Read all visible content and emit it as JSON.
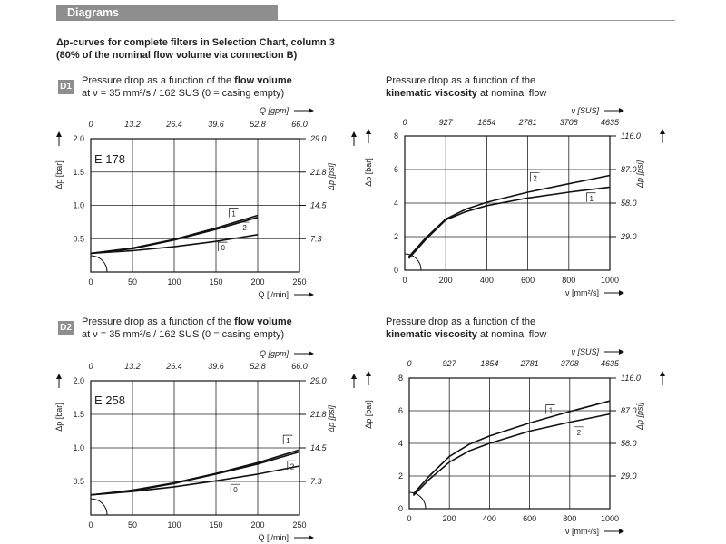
{
  "header": {
    "title": "Diagrams"
  },
  "subtitle": {
    "line1": "Δp-curves for complete filters in Selection Chart, column 3",
    "line2": "(80% of the nominal flow volume via connection B)"
  },
  "colors": {
    "header_bg": "#8e8e8e",
    "line": "#111111",
    "grid": "#222222"
  },
  "panels": {
    "d1": {
      "badge": "D1",
      "t1": "Pressure drop as a function of the ",
      "t1b": "flow volume",
      "t2": "at ν = 35 mm²/s / 162 SUS (0 = casing empty)"
    },
    "d2": {
      "badge": "D2",
      "t1": "Pressure drop as a function of the ",
      "t1b": "flow volume",
      "t2": "at ν = 35 mm²/s / 162 SUS (0 = casing empty)"
    },
    "v1": {
      "t1": "Pressure drop as a function of the",
      "t2b": "kinematic viscosity",
      "t2": " at nominal flow"
    },
    "v2": {
      "t1": "Pressure drop as a function of the",
      "t2b": "kinematic viscosity",
      "t2": " at nominal flow"
    }
  },
  "chart_data": [
    {
      "id": "d1",
      "type": "line",
      "title": "E 178",
      "xlabel": "Q [l/min]",
      "x2label": "Q [gpm]",
      "ylabel": "Δp [bar]",
      "y2label": "Δp [psi]",
      "xlim": [
        0,
        250
      ],
      "ylim": [
        0,
        2.0
      ],
      "xticks": [
        "0",
        "50",
        "100",
        "150",
        "200",
        "250"
      ],
      "xtick_vals": [
        0,
        50,
        100,
        150,
        200,
        250
      ],
      "x2ticks": [
        "0",
        "13.2",
        "26.4",
        "39.6",
        "52.8",
        "66.0"
      ],
      "yticks": [
        "0.5",
        "1.0",
        "1.5",
        "2.0"
      ],
      "ytick_vals": [
        0.5,
        1.0,
        1.5,
        2.0
      ],
      "y2ticks": [
        "7.3",
        "14.5",
        "21.8",
        "29.0"
      ],
      "series": [
        {
          "name": "0",
          "x": [
            0,
            50,
            100,
            150,
            200
          ],
          "y": [
            0.28,
            0.32,
            0.38,
            0.46,
            0.56
          ]
        },
        {
          "name": "1",
          "x": [
            0,
            50,
            100,
            150,
            200
          ],
          "y": [
            0.28,
            0.36,
            0.49,
            0.66,
            0.85
          ]
        },
        {
          "name": "2",
          "x": [
            0,
            50,
            100,
            150,
            200
          ],
          "y": [
            0.28,
            0.35,
            0.48,
            0.64,
            0.82
          ]
        }
      ],
      "annotations": [
        {
          "text": "1",
          "x": 170,
          "y": 0.93
        },
        {
          "text": "2",
          "x": 183,
          "y": 0.72
        },
        {
          "text": "0",
          "x": 157,
          "y": 0.42
        }
      ]
    },
    {
      "id": "v1",
      "type": "line",
      "title": "",
      "xlabel": "ν  [mm²/s]",
      "x2label": "ν  [SUS]",
      "ylabel": "Δp [bar]",
      "y2label": "Δp [psi]",
      "xlim": [
        0,
        1000
      ],
      "ylim": [
        0,
        8
      ],
      "xticks": [
        "0",
        "200",
        "400",
        "600",
        "800",
        "1000"
      ],
      "xtick_vals": [
        0,
        200,
        400,
        600,
        800,
        1000
      ],
      "x2ticks": [
        "0",
        "927",
        "1854",
        "2781",
        "3708",
        "4635"
      ],
      "yticks": [
        "0",
        "2",
        "4",
        "6",
        "8"
      ],
      "ytick_vals": [
        0,
        2,
        4,
        6,
        8
      ],
      "y2ticks": [
        "29.0",
        "58.0",
        "87.0",
        "116.0"
      ],
      "y2tick_vals": [
        2,
        4,
        6,
        8
      ],
      "series": [
        {
          "name": "1",
          "x": [
            20,
            100,
            200,
            300,
            400,
            600,
            800,
            1000
          ],
          "y": [
            0.7,
            1.8,
            3.0,
            3.5,
            3.85,
            4.3,
            4.65,
            4.95
          ]
        },
        {
          "name": "2",
          "x": [
            20,
            100,
            200,
            300,
            400,
            600,
            800,
            1000
          ],
          "y": [
            0.8,
            1.9,
            3.05,
            3.65,
            4.05,
            4.65,
            5.15,
            5.65
          ]
        }
      ],
      "annotations": [
        {
          "text": "2",
          "x": 630,
          "y": 5.7
        },
        {
          "text": "1",
          "x": 905,
          "y": 4.5
        }
      ]
    },
    {
      "id": "d2",
      "type": "line",
      "title": "E 258",
      "xlabel": "Q [l/min]",
      "x2label": "Q [gpm]",
      "ylabel": "Δp [bar]",
      "y2label": "Δp [psi]",
      "xlim": [
        0,
        250
      ],
      "ylim": [
        0,
        2.0
      ],
      "xticks": [
        "0",
        "50",
        "100",
        "150",
        "200",
        "250"
      ],
      "xtick_vals": [
        0,
        50,
        100,
        150,
        200,
        250
      ],
      "x2ticks": [
        "0",
        "13.2",
        "26.4",
        "39.6",
        "52.8",
        "66.0"
      ],
      "yticks": [
        "0.5",
        "1.0",
        "1.5",
        "2.0"
      ],
      "ytick_vals": [
        0.5,
        1.0,
        1.5,
        2.0
      ],
      "y2ticks": [
        "7.3",
        "14.5",
        "21.8",
        "29.0"
      ],
      "series": [
        {
          "name": "0",
          "x": [
            0,
            50,
            100,
            150,
            200,
            250
          ],
          "y": [
            0.3,
            0.35,
            0.42,
            0.51,
            0.61,
            0.73
          ]
        },
        {
          "name": "1",
          "x": [
            0,
            50,
            100,
            150,
            200,
            250
          ],
          "y": [
            0.3,
            0.37,
            0.48,
            0.62,
            0.78,
            0.97
          ]
        },
        {
          "name": "2",
          "x": [
            0,
            50,
            100,
            150,
            200,
            250
          ],
          "y": [
            0.3,
            0.36,
            0.47,
            0.61,
            0.76,
            0.94
          ]
        }
      ],
      "annotations": [
        {
          "text": "1",
          "x": 235,
          "y": 1.16
        },
        {
          "text": "2",
          "x": 240,
          "y": 0.78
        },
        {
          "text": "0",
          "x": 172,
          "y": 0.43
        }
      ]
    },
    {
      "id": "v2",
      "type": "line",
      "title": "",
      "xlabel": "ν  [mm²/s]",
      "x2label": "ν  [SUS]",
      "ylabel": "Δp [bar]",
      "y2label": "Δp [psi]",
      "xlim": [
        0,
        1000
      ],
      "ylim": [
        0,
        8
      ],
      "xticks": [
        "0",
        "200",
        "400",
        "600",
        "800",
        "1000"
      ],
      "xtick_vals": [
        0,
        200,
        400,
        600,
        800,
        1000
      ],
      "x2ticks": [
        "0",
        "927",
        "1854",
        "2781",
        "3708",
        "4635"
      ],
      "yticks": [
        "0",
        "2",
        "4",
        "6",
        "8"
      ],
      "ytick_vals": [
        0,
        2,
        4,
        6,
        8
      ],
      "y2ticks": [
        "29.0",
        "58.0",
        "87.0",
        "116.0"
      ],
      "y2tick_vals": [
        2,
        4,
        6,
        8
      ],
      "series": [
        {
          "name": "1",
          "x": [
            20,
            100,
            200,
            300,
            400,
            600,
            800,
            1000
          ],
          "y": [
            0.9,
            2.0,
            3.2,
            3.95,
            4.45,
            5.25,
            5.95,
            6.6
          ]
        },
        {
          "name": "2",
          "x": [
            20,
            100,
            200,
            300,
            400,
            600,
            800,
            1000
          ],
          "y": [
            0.8,
            1.8,
            2.85,
            3.55,
            4.0,
            4.75,
            5.3,
            5.8
          ]
        }
      ],
      "annotations": [
        {
          "text": "1",
          "x": 700,
          "y": 6.25
        },
        {
          "text": "2",
          "x": 840,
          "y": 4.9
        }
      ]
    }
  ]
}
